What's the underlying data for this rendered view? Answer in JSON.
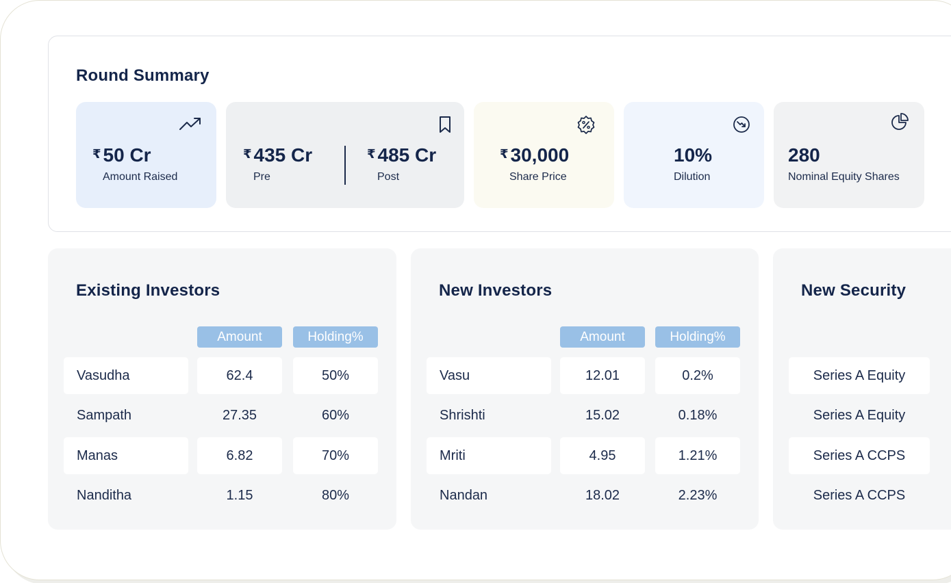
{
  "summary": {
    "title": "Round Summary",
    "currency_symbol": "₹",
    "amount_raised": {
      "value": "50 Cr",
      "label": "Amount Raised",
      "icon": "trending-up-icon"
    },
    "valuation": {
      "pre_value": "435 Cr",
      "pre_label": "Pre",
      "post_value": "485 Cr",
      "post_label": "Post",
      "icon": "bookmark-icon"
    },
    "share_price": {
      "value": "30,000",
      "label": "Share Price",
      "icon": "percent-badge-icon"
    },
    "dilution": {
      "value": "10%",
      "label": "Dilution",
      "icon": "trending-down-circle-icon"
    },
    "nominal_shares": {
      "value": "280",
      "label": "Nominal Equity Shares",
      "icon": "pie-chart-icon"
    }
  },
  "existing_investors": {
    "title": "Existing Investors",
    "columns": [
      "Amount",
      "Holding%"
    ],
    "rows": [
      {
        "name": "Vasudha",
        "amount": "62.4",
        "holding": "50%"
      },
      {
        "name": "Sampath",
        "amount": "27.35",
        "holding": "60%"
      },
      {
        "name": "Manas",
        "amount": "6.82",
        "holding": "70%"
      },
      {
        "name": "Nanditha",
        "amount": "1.15",
        "holding": "80%"
      }
    ]
  },
  "new_investors": {
    "title": "New Investors",
    "columns": [
      "Amount",
      "Holding%"
    ],
    "rows": [
      {
        "name": "Vasu",
        "amount": "12.01",
        "holding": "0.2%"
      },
      {
        "name": "Shrishti",
        "amount": "15.02",
        "holding": "0.18%"
      },
      {
        "name": "Mriti",
        "amount": "4.95",
        "holding": "1.21%"
      },
      {
        "name": "Nandan",
        "amount": "18.02",
        "holding": "2.23%"
      }
    ]
  },
  "new_security": {
    "title": "New Security",
    "rows": [
      "Series A Equity",
      "Series A Equity",
      "Series A CCPS",
      "Series A CCPS"
    ]
  },
  "colors": {
    "card_blue": "#e7effb",
    "card_gray": "#eef0f2",
    "card_cream": "#fbfaf1",
    "card_light_blue": "#f0f5fd",
    "pill_blue": "#99c0e6",
    "navy_text": "#14254a"
  }
}
